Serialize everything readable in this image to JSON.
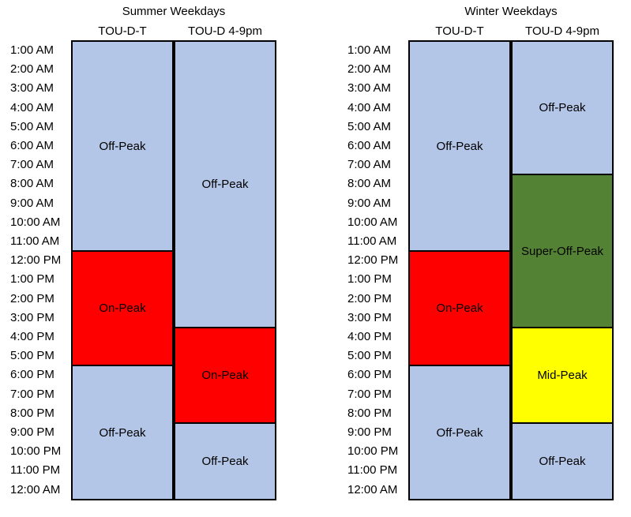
{
  "colors": {
    "Off-Peak": "#b4c6e7",
    "On-Peak": "#ff0000",
    "Super-Off-Peak": "#548235",
    "Mid-Peak": "#ffff00"
  },
  "hours": [
    "1:00 AM",
    "2:00 AM",
    "3:00 AM",
    "4:00 AM",
    "5:00 AM",
    "6:00 AM",
    "7:00 AM",
    "8:00 AM",
    "9:00 AM",
    "10:00 AM",
    "11:00 AM",
    "12:00 PM",
    "1:00 PM",
    "2:00 PM",
    "3:00 PM",
    "4:00 PM",
    "5:00 PM",
    "6:00 PM",
    "7:00 PM",
    "8:00 PM",
    "9:00 PM",
    "10:00 PM",
    "11:00 PM",
    "12:00 AM"
  ],
  "panels": [
    {
      "title": "Summer Weekdays",
      "columns": [
        {
          "header": "TOU-D-T",
          "blocks": [
            {
              "label": "Off-Peak",
              "start": 0,
              "end": 11
            },
            {
              "label": "On-Peak",
              "start": 11,
              "end": 17
            },
            {
              "label": "Off-Peak",
              "start": 17,
              "end": 24
            }
          ]
        },
        {
          "header": "TOU-D 4-9pm",
          "blocks": [
            {
              "label": "Off-Peak",
              "start": 0,
              "end": 15
            },
            {
              "label": "On-Peak",
              "start": 15,
              "end": 20
            },
            {
              "label": "Off-Peak",
              "start": 20,
              "end": 24
            }
          ]
        }
      ]
    },
    {
      "title": "Winter Weekdays",
      "columns": [
        {
          "header": "TOU-D-T",
          "blocks": [
            {
              "label": "Off-Peak",
              "start": 0,
              "end": 11
            },
            {
              "label": "On-Peak",
              "start": 11,
              "end": 17
            },
            {
              "label": "Off-Peak",
              "start": 17,
              "end": 24
            }
          ]
        },
        {
          "header": "TOU-D 4-9pm",
          "blocks": [
            {
              "label": "Off-Peak",
              "start": 0,
              "end": 7
            },
            {
              "label": "Super-Off-Peak",
              "start": 7,
              "end": 15
            },
            {
              "label": "Mid-Peak",
              "start": 15,
              "end": 20
            },
            {
              "label": "Off-Peak",
              "start": 20,
              "end": 24
            }
          ]
        }
      ]
    }
  ]
}
